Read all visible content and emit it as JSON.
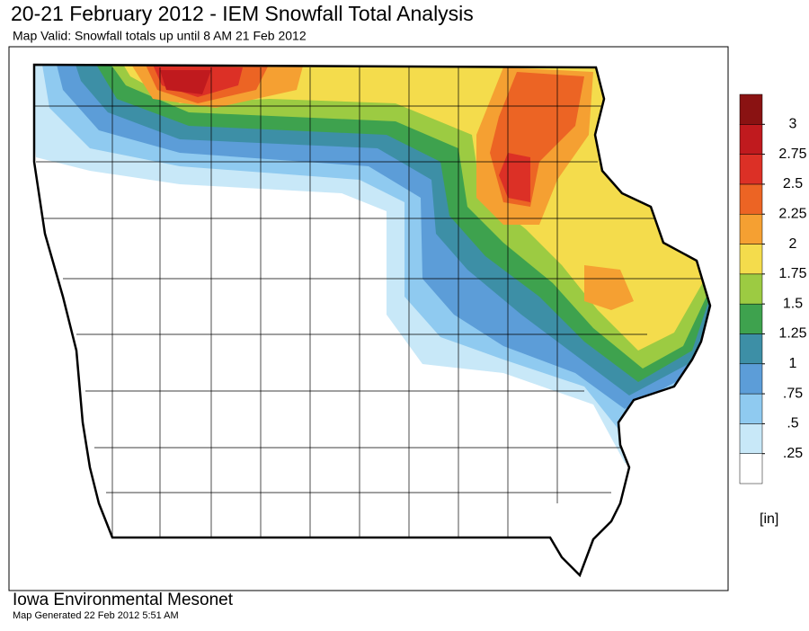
{
  "header": {
    "title": "20-21 February 2012 - IEM Snowfall Total Analysis",
    "subtitle": "Map Valid: Snowfall totals up until 8 AM 21 Feb 2012"
  },
  "legend": {
    "unit": "[in]",
    "lim": [
      0,
      3.25
    ],
    "ticks": [
      {
        "value": 0.25,
        "label": ".25"
      },
      {
        "value": 0.5,
        "label": ".5"
      },
      {
        "value": 0.75,
        "label": ".75"
      },
      1,
      1.25,
      1.5,
      1.75,
      2,
      2.25,
      2.5,
      2.75,
      3
    ],
    "colors": [
      "#ffffff",
      "#c8e8f8",
      "#8fcaf0",
      "#5c9dd8",
      "#3d8fa6",
      "#3ea24e",
      "#9ccb42",
      "#f4dc4c",
      "#f5a032",
      "#ec6424",
      "#dc3026",
      "#c01a1e",
      "#8a1212"
    ]
  },
  "footer": {
    "org": "Iowa Environmental Mesonet",
    "generated": "Map Generated 22 Feb 2012 5:51 AM"
  }
}
